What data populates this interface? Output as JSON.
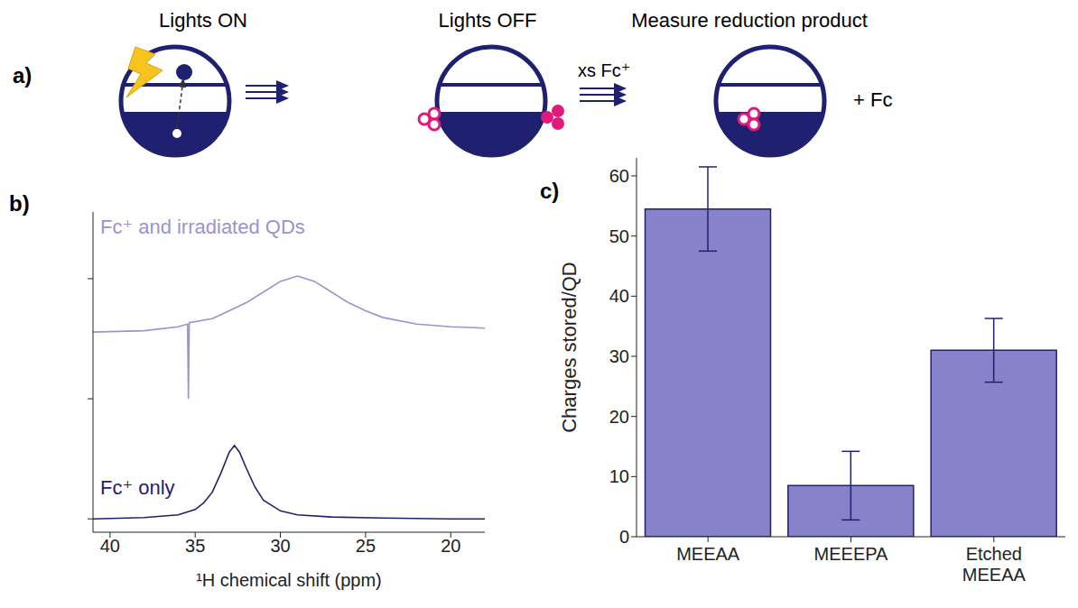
{
  "diagram": {
    "panel": "a)",
    "steps": [
      {
        "label": "Lights ON"
      },
      {
        "label": "Lights OFF"
      },
      {
        "label": "Measure reduction product"
      }
    ],
    "reagent": "xs Fc⁺",
    "product": "+ Fc"
  },
  "chart_data": [
    {
      "panel": "b)",
      "type": "line",
      "x_label": "¹H chemical shift (ppm)",
      "xlim": [
        41,
        18
      ],
      "xticks": [
        40,
        35,
        30,
        25,
        20
      ],
      "ylim": [
        -0.5,
        11.5
      ],
      "yticks": [
        0,
        4.5,
        9
      ],
      "tick_labels": "x",
      "series": [
        {
          "name": "Fc⁺ and irradiated QDs",
          "color": "#9a93d1",
          "x": [
            41,
            38,
            36,
            35.45,
            35.4,
            35.35,
            34,
            33,
            32,
            31,
            30,
            29,
            28,
            27,
            26,
            25,
            24,
            22,
            20,
            18
          ],
          "values": [
            7.0,
            7.05,
            7.2,
            7.3,
            4.5,
            7.35,
            7.5,
            7.8,
            8.1,
            8.5,
            8.9,
            9.1,
            8.9,
            8.5,
            8.1,
            7.8,
            7.55,
            7.3,
            7.2,
            7.15
          ]
        },
        {
          "name": "Fc⁺ only",
          "color": "#1f2170",
          "x": [
            41,
            38,
            36,
            35,
            34.5,
            34,
            33.5,
            33,
            32.7,
            32.4,
            32,
            31.5,
            31,
            30,
            29,
            27,
            24,
            20,
            18
          ],
          "values": [
            0,
            0.05,
            0.15,
            0.35,
            0.6,
            1.0,
            1.7,
            2.5,
            2.75,
            2.5,
            1.9,
            1.2,
            0.7,
            0.3,
            0.15,
            0.07,
            0.03,
            0,
            0
          ]
        }
      ]
    },
    {
      "panel": "c)",
      "type": "bar",
      "y_label": "Charges stored/QD",
      "categories": [
        "MEEAA",
        "MEEEPA",
        "Etched MEEAA"
      ],
      "values": [
        54.5,
        8.5,
        31
      ],
      "errors": [
        7,
        5.7,
        5.3
      ],
      "color": "#8782c9",
      "ylim": [
        0,
        63
      ],
      "yticks": [
        0,
        10,
        20,
        30,
        40,
        50,
        60
      ]
    }
  ]
}
